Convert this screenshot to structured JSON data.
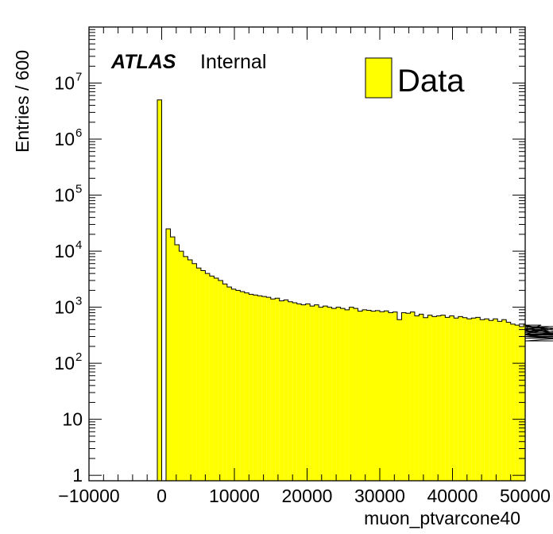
{
  "chart_data": {
    "type": "bar",
    "style": "histogram-step-filled",
    "title": "",
    "xlabel": "muon_ptvarcone40",
    "ylabel": "Entries / 600",
    "xlim": [
      -10000,
      50000
    ],
    "ylim": [
      0.8,
      100000000
    ],
    "yscale": "log",
    "bin_width": 600,
    "x_ticks": [
      {
        "value": -10000,
        "label": "−10000"
      },
      {
        "value": 0,
        "label": "0"
      },
      {
        "value": 10000,
        "label": "10000"
      },
      {
        "value": 20000,
        "label": "20000"
      },
      {
        "value": 30000,
        "label": "30000"
      },
      {
        "value": 40000,
        "label": "40000"
      },
      {
        "value": 50000,
        "label": "50000"
      }
    ],
    "y_ticks": [
      {
        "value": 1,
        "base": "1",
        "exp": ""
      },
      {
        "value": 10,
        "base": "10",
        "exp": ""
      },
      {
        "value": 100,
        "base": "10",
        "exp": "2"
      },
      {
        "value": 1000,
        "base": "10",
        "exp": "3"
      },
      {
        "value": 10000,
        "base": "10",
        "exp": "4"
      },
      {
        "value": 100000,
        "base": "10",
        "exp": "5"
      },
      {
        "value": 1000000,
        "base": "10",
        "exp": "6"
      },
      {
        "value": 10000000,
        "base": "10",
        "exp": "7"
      }
    ],
    "series": [
      {
        "name": "Data",
        "color": "#ffff00",
        "edge_color": "#000000",
        "bins_start": -600,
        "values": [
          5000000,
          0,
          25000,
          18000,
          13000,
          10000,
          8000,
          7000,
          6000,
          5000,
          4500,
          4000,
          3600,
          3300,
          3000,
          2600,
          2300,
          2100,
          2000,
          1900,
          1800,
          1700,
          1650,
          1600,
          1550,
          1500,
          1400,
          1450,
          1300,
          1350,
          1250,
          1200,
          1150,
          1100,
          1150,
          1050,
          1100,
          1000,
          1050,
          1000,
          950,
          1000,
          950,
          900,
          1000,
          950,
          850,
          900,
          880,
          850,
          870,
          830,
          860,
          800,
          820,
          600,
          800,
          780,
          820,
          700,
          750,
          650,
          720,
          680,
          700,
          720,
          660,
          700,
          640,
          680,
          650,
          620,
          640,
          660,
          600,
          620,
          580,
          620,
          560,
          600,
          540,
          500,
          480,
          450,
          500,
          400,
          420,
          380,
          480,
          400,
          450,
          420,
          330,
          450,
          370,
          300,
          350,
          330,
          300,
          420,
          300,
          250,
          320,
          300,
          280
        ]
      }
    ],
    "legend": {
      "entries": [
        "Data"
      ],
      "position": "top-right"
    },
    "grid": false
  },
  "annotation": {
    "experiment": "ATLAS",
    "status": "Internal"
  }
}
